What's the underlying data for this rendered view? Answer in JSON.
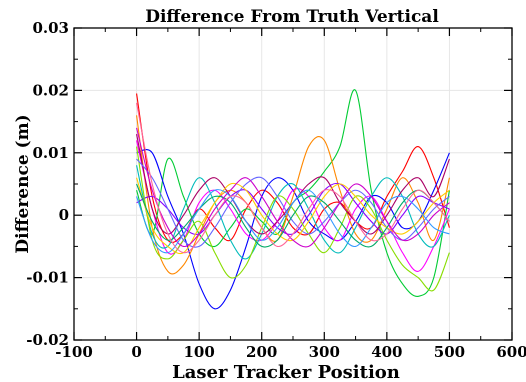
{
  "chart_data": {
    "type": "line",
    "title": "Difference From Truth Vertical",
    "xlabel": "Laser Tracker Position",
    "ylabel": "Difference (m)",
    "xlim": [
      -100,
      600
    ],
    "ylim": [
      -0.02,
      0.03
    ],
    "x_ticks": [
      -100,
      0,
      100,
      200,
      300,
      400,
      500,
      600
    ],
    "x_tick_labels": [
      "-100",
      "0",
      "100",
      "200",
      "300",
      "400",
      "500",
      "600"
    ],
    "y_ticks": [
      -0.02,
      -0.01,
      0,
      0.01,
      0.02,
      0.03
    ],
    "y_tick_labels": [
      "-0.02",
      "-0.01",
      "0",
      "0.01",
      "0.02",
      "0.03"
    ],
    "grid": true,
    "legend": "none",
    "x": [
      0,
      25,
      50,
      75,
      100,
      125,
      150,
      175,
      200,
      225,
      250,
      275,
      300,
      325,
      350,
      375,
      400,
      425,
      450,
      475,
      500
    ],
    "series": [
      {
        "color": "#ff0000",
        "values": [
          0.0195,
          0.003,
          -0.004,
          -0.003,
          0.001,
          -0.002,
          -0.004,
          0.001,
          0.004,
          0.002,
          -0.002,
          -0.003,
          0.001,
          0.002,
          -0.001,
          -0.002,
          0.003,
          0.007,
          0.011,
          0.006,
          -0.002
        ]
      },
      {
        "color": "#00cc33",
        "values": [
          0.004,
          -0.003,
          0.009,
          0.003,
          -0.003,
          -0.005,
          -0.002,
          0.001,
          -0.001,
          -0.003,
          0.002,
          0.004,
          0.007,
          0.011,
          0.02,
          0.004,
          -0.006,
          -0.011,
          -0.013,
          -0.01,
          0.004
        ]
      },
      {
        "color": "#0000ff",
        "values": [
          0.01,
          0.01,
          0.003,
          -0.003,
          -0.011,
          -0.015,
          -0.012,
          -0.005,
          0.003,
          0.006,
          0.004,
          -0.001,
          -0.003,
          -0.004,
          -0.001,
          0.003,
          0.002,
          -0.002,
          -0.001,
          0.004,
          0.01
        ]
      },
      {
        "color": "#ff8800",
        "values": [
          0.016,
          -0.002,
          -0.009,
          -0.008,
          -0.003,
          0.002,
          0.004,
          0.002,
          -0.002,
          -0.004,
          0.003,
          0.011,
          0.012,
          0.004,
          -0.003,
          -0.004,
          0.001,
          0.006,
          0.002,
          -0.004,
          0.006
        ]
      },
      {
        "color": "#ff00ff",
        "values": [
          0.012,
          0.001,
          -0.006,
          -0.004,
          0.002,
          0.004,
          0.001,
          -0.003,
          -0.004,
          -0.001,
          0.004,
          0.003,
          -0.002,
          -0.004,
          0.001,
          0.003,
          -0.001,
          -0.006,
          -0.009,
          -0.005,
          0.001
        ]
      },
      {
        "color": "#00bbbb",
        "values": [
          0.008,
          -0.003,
          -0.005,
          0.001,
          0.006,
          0.002,
          -0.004,
          -0.007,
          -0.003,
          0.003,
          0.005,
          0.001,
          -0.004,
          -0.006,
          -0.002,
          0.003,
          0.006,
          0.003,
          -0.003,
          -0.005,
          0.0
        ]
      },
      {
        "color": "#8800ff",
        "values": [
          0.002,
          0.003,
          0.001,
          -0.002,
          -0.003,
          0.0,
          0.003,
          0.004,
          0.001,
          -0.002,
          -0.003,
          0.0,
          0.004,
          0.005,
          0.002,
          -0.001,
          -0.003,
          0.0,
          0.003,
          0.002,
          0.001
        ]
      },
      {
        "color": "#88dd00",
        "values": [
          0.011,
          -0.004,
          -0.007,
          -0.004,
          -0.001,
          -0.006,
          -0.01,
          -0.008,
          -0.002,
          0.003,
          0.001,
          -0.003,
          -0.006,
          -0.002,
          0.003,
          0.001,
          -0.004,
          -0.008,
          -0.01,
          -0.012,
          -0.006
        ]
      },
      {
        "color": "#aa0066",
        "values": [
          0.013,
          0.001,
          -0.003,
          0.0,
          0.004,
          0.006,
          0.003,
          -0.001,
          -0.003,
          -0.001,
          0.002,
          0.005,
          0.006,
          0.002,
          -0.001,
          -0.003,
          0.0,
          0.004,
          0.006,
          0.003,
          0.009
        ]
      },
      {
        "color": "#6666ff",
        "values": [
          0.009,
          0.006,
          0.001,
          -0.004,
          -0.005,
          -0.002,
          0.002,
          0.005,
          0.006,
          0.003,
          -0.001,
          -0.003,
          -0.001,
          0.002,
          0.004,
          0.002,
          -0.002,
          -0.004,
          -0.002,
          0.001,
          0.003
        ]
      },
      {
        "color": "#ffcc00",
        "values": [
          0.006,
          -0.002,
          -0.005,
          -0.006,
          -0.002,
          0.002,
          0.005,
          0.004,
          0.0,
          -0.003,
          -0.004,
          -0.001,
          0.003,
          0.005,
          0.003,
          0.0,
          -0.002,
          -0.003,
          -0.001,
          0.002,
          0.004
        ]
      },
      {
        "color": "#00aa66",
        "values": [
          0.005,
          -0.001,
          -0.004,
          -0.002,
          0.001,
          0.003,
          0.002,
          -0.002,
          -0.005,
          -0.004,
          0.0,
          0.003,
          0.002,
          -0.001,
          -0.004,
          -0.005,
          -0.002,
          0.002,
          0.004,
          0.002,
          -0.001
        ]
      },
      {
        "color": "#cc00cc",
        "values": [
          0.014,
          0.004,
          -0.002,
          -0.005,
          -0.003,
          0.001,
          0.004,
          0.006,
          0.003,
          -0.001,
          -0.004,
          -0.005,
          -0.002,
          0.002,
          0.005,
          0.003,
          -0.001,
          -0.004,
          -0.003,
          0.0,
          0.002
        ]
      },
      {
        "color": "#3399ff",
        "values": [
          0.003,
          -0.004,
          -0.006,
          -0.003,
          0.001,
          0.004,
          0.003,
          -0.001,
          -0.004,
          -0.002,
          0.002,
          0.004,
          0.001,
          -0.003,
          -0.005,
          -0.002,
          0.002,
          0.003,
          0.001,
          -0.002,
          -0.003
        ]
      },
      {
        "color": "#ff6699",
        "values": [
          0.018,
          0.005,
          -0.003,
          -0.006,
          -0.004,
          0.0,
          0.003,
          0.002,
          -0.002,
          -0.005,
          -0.003,
          0.001,
          0.004,
          0.003,
          -0.001,
          -0.004,
          -0.003,
          0.001,
          0.004,
          0.002,
          -0.001
        ]
      }
    ]
  }
}
